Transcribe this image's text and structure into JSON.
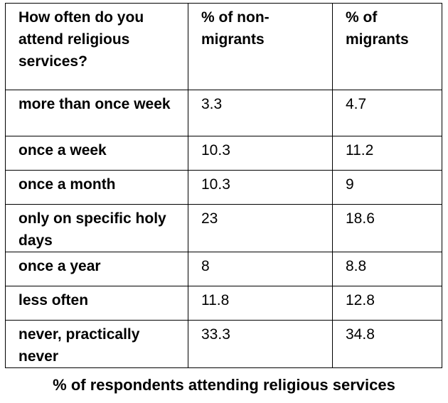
{
  "table": {
    "headers": [
      "How often do you attend religious services?",
      "% of non-migrants",
      "% of migrants"
    ],
    "rows": [
      {
        "label": "more than once week",
        "non_migrants": "3.3",
        "migrants": "4.7"
      },
      {
        "label": "once a week",
        "non_migrants": "10.3",
        "migrants": "11.2"
      },
      {
        "label": "once a month",
        "non_migrants": "10.3",
        "migrants": "9"
      },
      {
        "label": "only on specific holy days",
        "non_migrants": "23",
        "migrants": "18.6"
      },
      {
        "label": "once a year",
        "non_migrants": "8",
        "migrants": "8.8"
      },
      {
        "label": "less often",
        "non_migrants": "11.8",
        "migrants": "12.8"
      },
      {
        "label": "never, practically never",
        "non_migrants": "33.3",
        "migrants": "34.8"
      }
    ]
  },
  "caption": "% of respondents attending religious services"
}
